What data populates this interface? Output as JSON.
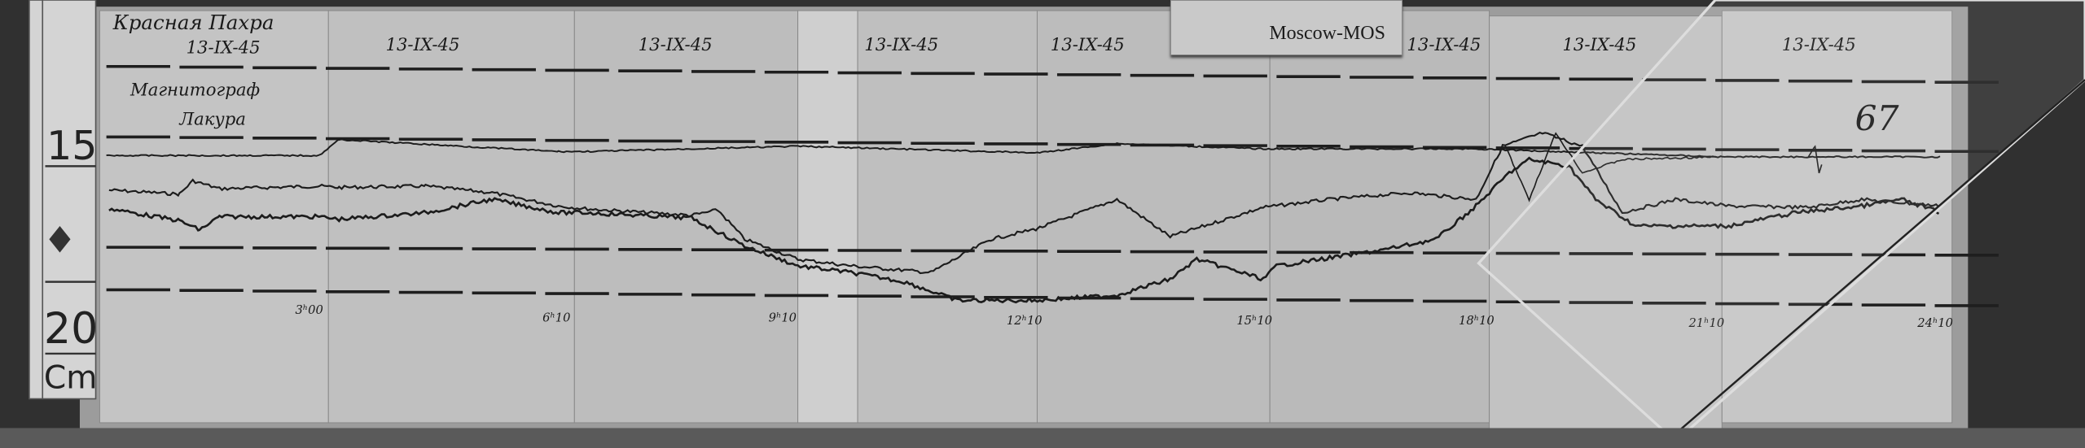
{
  "header": {
    "station": "Красная Пахра",
    "date": "13-IX-45",
    "title_line1": "Магнитограф",
    "title_line2": "Лакура"
  },
  "strip_dates": [
    "13-IX-45",
    "13-IX-45",
    "13-IX-45",
    "13-IX-45",
    "13-IX-45",
    "13-IX-45",
    "13-IX-45",
    "13-IX-45",
    "13-IX-45"
  ],
  "time_marks": [
    "3ʰ00",
    "6ʰ10",
    "9ʰ10",
    "12ʰ10",
    "15ʰ10",
    "18ʰ10",
    "21ʰ10",
    "24ʰ10"
  ],
  "ruler": {
    "mark_15": "15",
    "mark_20": "20",
    "unit": "Cm"
  },
  "catalog_label": "Moscow-MOS",
  "annotation": "67"
}
